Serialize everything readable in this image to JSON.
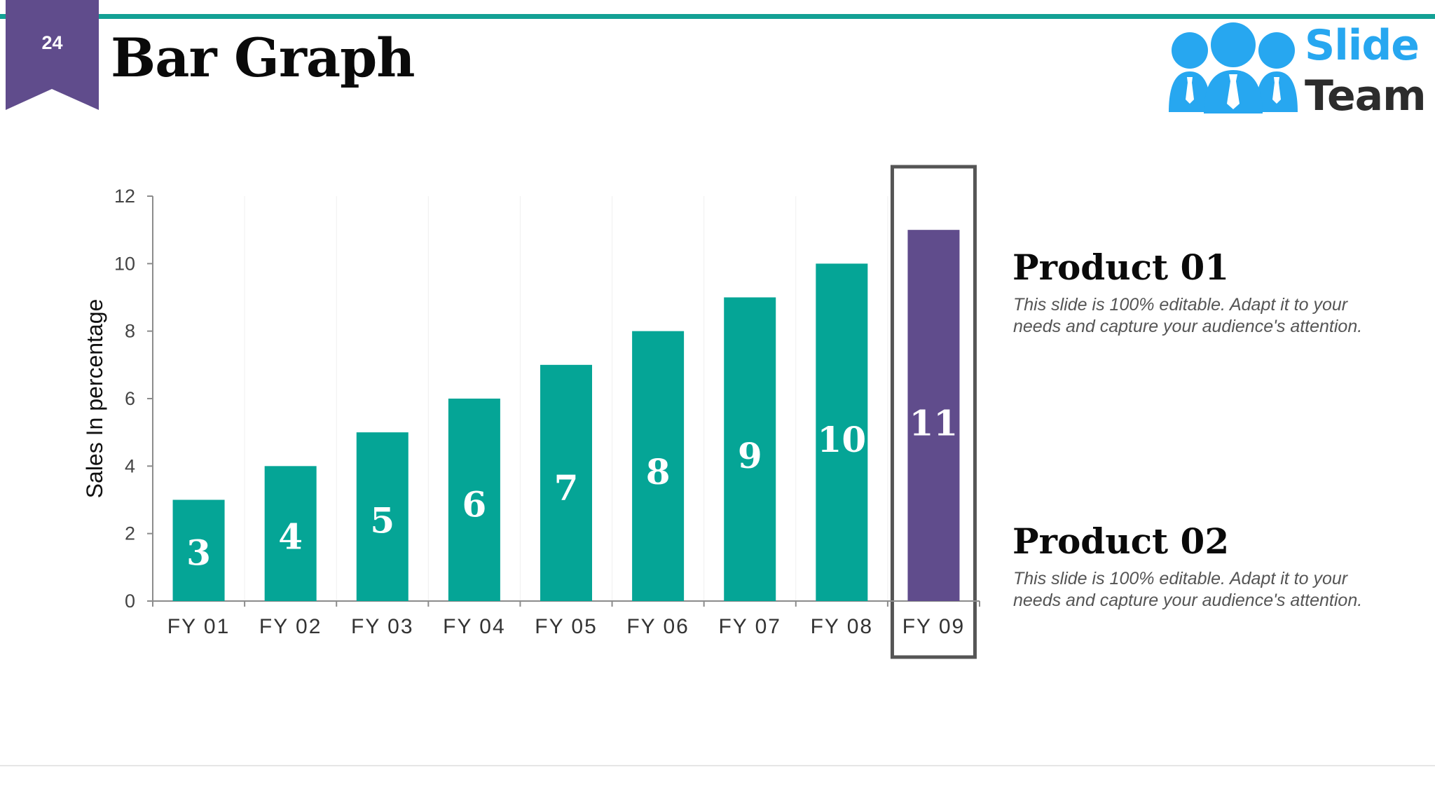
{
  "slide": {
    "page_number": "24",
    "title": "Bar Graph"
  },
  "logo": {
    "line1": "Slide",
    "line2": "Team"
  },
  "colors": {
    "accent": "#13a195",
    "badge": "#604c8c",
    "highlight_bar": "#604c8c",
    "logo_blue": "#27a7f0"
  },
  "chart_data": {
    "type": "bar",
    "categories": [
      "FY 01",
      "FY 02",
      "FY 03",
      "FY 04",
      "FY 05",
      "FY 06",
      "FY 07",
      "FY 08",
      "FY 09"
    ],
    "values": [
      3,
      4,
      5,
      6,
      7,
      8,
      9,
      10,
      11
    ],
    "data_labels": [
      "3",
      "4",
      "5",
      "6",
      "7",
      "8",
      "9",
      "10",
      "11"
    ],
    "ylabel": "Sales In percentage",
    "xlabel": "",
    "ylim": [
      0,
      12
    ],
    "yticks": [
      0,
      2,
      4,
      6,
      8,
      10,
      12
    ],
    "ytick_labels": [
      "0",
      "2",
      "4",
      "6",
      "8",
      "10",
      "12"
    ],
    "bar_color": "#05a596",
    "highlight_category": "FY 09",
    "highlight_color": "#604c8c",
    "grid": "vertical light lines between categories",
    "legend": "none"
  },
  "products": [
    {
      "title": "Product 01",
      "description": "This slide is 100% editable. Adapt it to your needs and capture your audience's attention."
    },
    {
      "title": "Product 02",
      "description": "This slide is 100% editable. Adapt it to your needs and capture your audience's attention."
    }
  ]
}
